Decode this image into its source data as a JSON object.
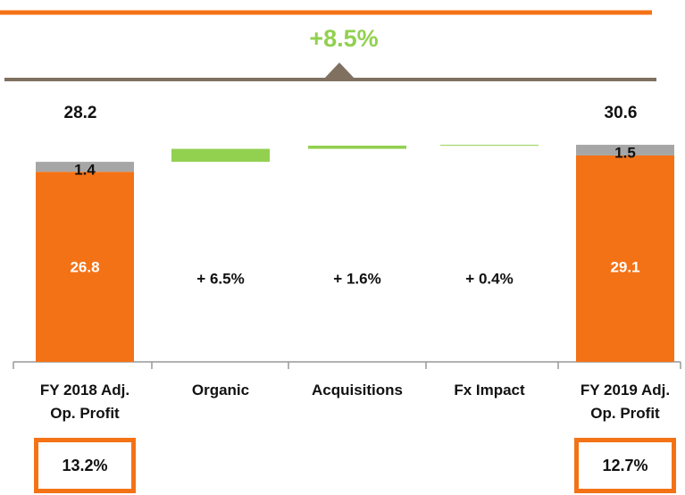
{
  "chart_data": {
    "type": "waterfall",
    "growth_label": "+8.5%",
    "categories": [
      "FY 2018 Adj. Op. Profit",
      "Organic",
      "Acquisitions",
      "Fx Impact",
      "FY 2019 Adj. Op. Profit"
    ],
    "base_values": [
      26.8,
      null,
      null,
      null,
      29.1
    ],
    "other_values": [
      1.4,
      null,
      null,
      null,
      1.5
    ],
    "totals": [
      28.2,
      null,
      null,
      null,
      30.6
    ],
    "changes": [
      null,
      1.83,
      0.45,
      0.11,
      null
    ],
    "change_labels": [
      null,
      "+ 6.5%",
      "+ 1.6%",
      "+ 0.4%",
      null
    ],
    "margins": [
      "13.2%",
      null,
      null,
      null,
      "12.7%"
    ],
    "base_color": "#f47216",
    "other_color": "#a6a6a6",
    "change_color": "#92d050",
    "ylim": [
      0,
      33
    ]
  }
}
